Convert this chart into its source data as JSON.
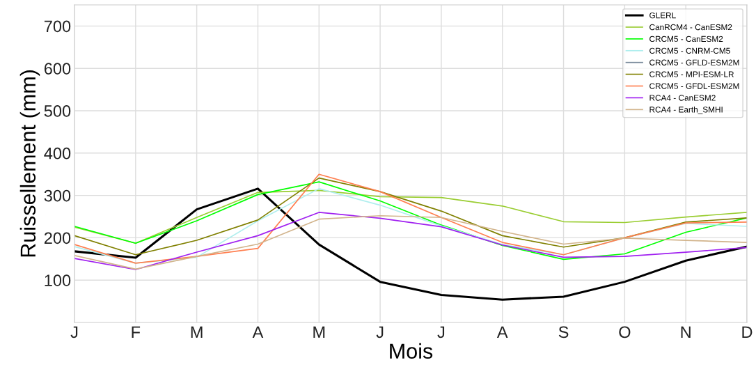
{
  "chart_data": {
    "type": "line",
    "xlabel": "Mois",
    "ylabel": "Ruissellement (mm)",
    "categories": [
      "J",
      "F",
      "M",
      "A",
      "M",
      "J",
      "J",
      "A",
      "S",
      "O",
      "N",
      "D"
    ],
    "ylim": [
      0,
      750
    ],
    "yticks": [
      100,
      200,
      300,
      400,
      500,
      600,
      700
    ],
    "grid": true,
    "legend": "top right",
    "series": [
      {
        "name": "GLERL",
        "color": "#000000",
        "values": [
          168,
          153,
          267,
          316,
          184,
          96,
          65,
          54,
          61,
          96,
          146,
          179
        ]
      },
      {
        "name": "CanRCM4 - CanESM2",
        "color": "#9acd32",
        "values": [
          225,
          187,
          248,
          307,
          312,
          297,
          295,
          275,
          238,
          236,
          249,
          260
        ]
      },
      {
        "name": "CRCM5 - CanESM2",
        "color": "#00ff00",
        "values": [
          227,
          187,
          240,
          302,
          332,
          287,
          230,
          182,
          149,
          162,
          213,
          247
        ]
      },
      {
        "name": "CRCM5 - CNRM-CM5",
        "color": "#afeeee",
        "values": [
          179,
          140,
          154,
          240,
          316,
          277,
          228,
          184,
          160,
          200,
          234,
          227
        ]
      },
      {
        "name": "CRCM5 - GFLD-ESM2M",
        "color": "#778899",
        "values": [
          null,
          null,
          null,
          null,
          null,
          null,
          null,
          null,
          null,
          null,
          null,
          null
        ]
      },
      {
        "name": "CRCM5 - MPI-ESM-LR",
        "color": "#808000",
        "values": [
          205,
          160,
          194,
          242,
          341,
          309,
          263,
          205,
          178,
          200,
          237,
          247
        ]
      },
      {
        "name": "CRCM5 - GFDL-ESM2M",
        "color": "#ff7f50",
        "values": [
          184,
          140,
          156,
          175,
          350,
          309,
          248,
          189,
          160,
          200,
          235,
          237
        ]
      },
      {
        "name": "RCA4 - CanESM2",
        "color": "#a020f0",
        "values": [
          151,
          125,
          166,
          205,
          260,
          246,
          226,
          183,
          154,
          156,
          166,
          177
        ]
      },
      {
        "name": "RCA4 - Earth_SMHI",
        "color": "#d2b48c",
        "values": [
          158,
          126,
          156,
          185,
          244,
          252,
          248,
          215,
          185,
          199,
          194,
          189
        ]
      }
    ]
  }
}
